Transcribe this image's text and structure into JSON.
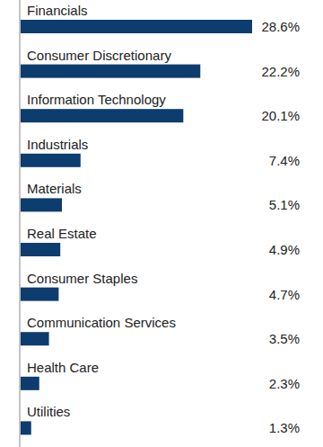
{
  "chart_data": {
    "type": "bar",
    "orientation": "horizontal",
    "categories": [
      "Financials",
      "Consumer Discretionary",
      "Information Technology",
      "Industrials",
      "Materials",
      "Real Estate",
      "Consumer Staples",
      "Communication Services",
      "Health Care",
      "Utilities"
    ],
    "values": [
      28.6,
      22.2,
      20.1,
      7.4,
      5.1,
      4.9,
      4.7,
      3.5,
      2.3,
      1.3
    ],
    "value_labels": [
      "28.6%",
      "22.2%",
      "20.1%",
      "7.4%",
      "5.1%",
      "4.9%",
      "4.7%",
      "3.5%",
      "2.3%",
      "1.3%"
    ],
    "color": "#0d3c6e",
    "xlim": [
      0,
      28.6
    ],
    "data_labels": true,
    "tick_labels": false,
    "grid": false
  }
}
